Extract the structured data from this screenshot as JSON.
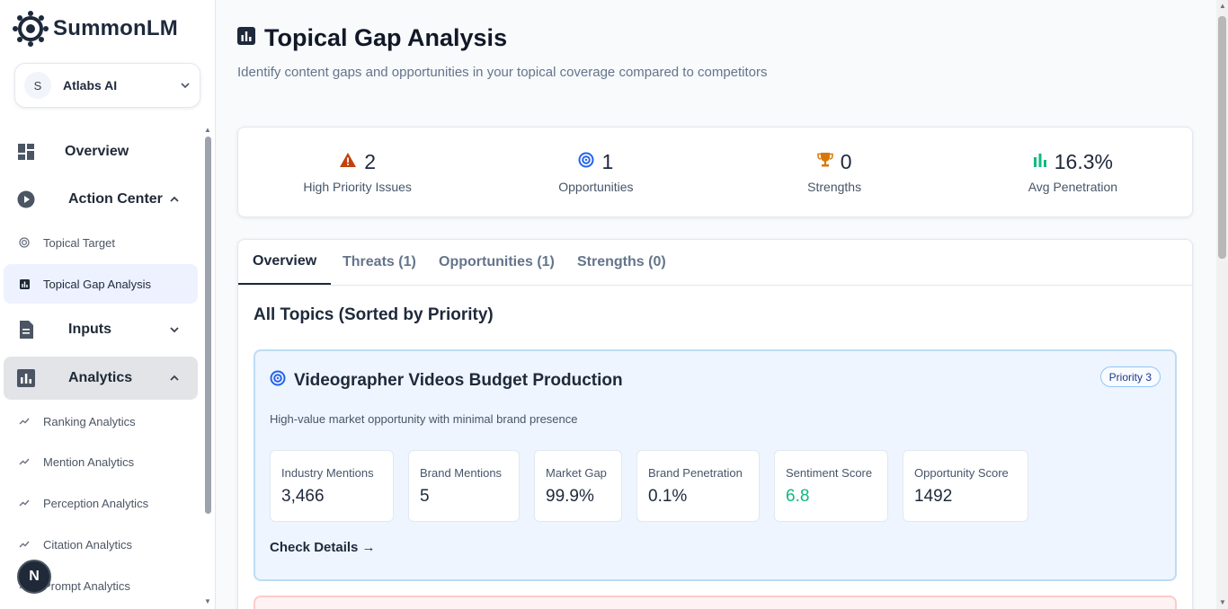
{
  "brand": {
    "name": "SummonLM"
  },
  "workspace": {
    "initial": "S",
    "name": "Atlabs AI"
  },
  "sidebar": {
    "items": [
      {
        "label": "Overview",
        "icon": "dashboard-icon"
      },
      {
        "label": "Action Center",
        "icon": "play-circle-icon",
        "expanded": true,
        "children": [
          {
            "label": "Topical Target",
            "icon": "target-icon"
          },
          {
            "label": "Topical Gap Analysis",
            "icon": "bar-chart-icon",
            "active": true
          }
        ]
      },
      {
        "label": "Inputs",
        "icon": "document-icon",
        "expanded": false
      },
      {
        "label": "Analytics",
        "icon": "analytics-icon",
        "expanded": true,
        "children": [
          {
            "label": "Ranking Analytics",
            "icon": "trend-icon"
          },
          {
            "label": "Mention Analytics",
            "icon": "trend-icon"
          },
          {
            "label": "Perception Analytics",
            "icon": "trend-icon"
          },
          {
            "label": "Citation Analytics",
            "icon": "trend-icon"
          },
          {
            "label": "Prompt Analytics",
            "icon": "trend-icon"
          }
        ]
      }
    ]
  },
  "floating_badge": {
    "label": "N"
  },
  "page": {
    "title": "Topical Gap Analysis",
    "subtitle": "Identify content gaps and opportunities in your topical coverage compared to competitors"
  },
  "stats": [
    {
      "value": "2",
      "label": "High Priority Issues",
      "icon": "warning-icon",
      "color": "#c2410c"
    },
    {
      "value": "1",
      "label": "Opportunities",
      "icon": "target-icon",
      "color": "#2563eb"
    },
    {
      "value": "0",
      "label": "Strengths",
      "icon": "trophy-icon",
      "color": "#d97706"
    },
    {
      "value": "16.3%",
      "label": "Avg Penetration",
      "icon": "bar-chart-icon",
      "color": "#10b981"
    }
  ],
  "tabs": [
    {
      "label": "Overview",
      "active": true
    },
    {
      "label": "Threats (1)"
    },
    {
      "label": "Opportunities (1)"
    },
    {
      "label": "Strengths (0)"
    }
  ],
  "section_title": "All Topics (Sorted by Priority)",
  "topic": {
    "title": "Videographer Videos Budget Production",
    "priority": "Priority 3",
    "description": "High-value market opportunity with minimal brand presence",
    "metrics": [
      {
        "label": "Industry Mentions",
        "value": "3,466"
      },
      {
        "label": "Brand Mentions",
        "value": "5"
      },
      {
        "label": "Market Gap",
        "value": "99.9%"
      },
      {
        "label": "Brand Penetration",
        "value": "0.1%"
      },
      {
        "label": "Sentiment Score",
        "value": "6.8",
        "color": "#10b981"
      },
      {
        "label": "Opportunity Score",
        "value": "1492"
      }
    ],
    "link": "Check Details →"
  }
}
